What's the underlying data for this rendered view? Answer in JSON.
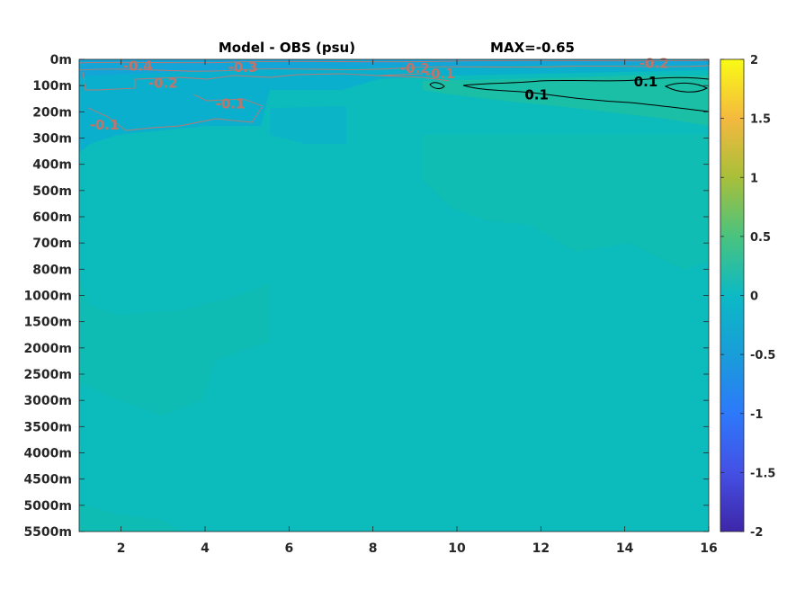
{
  "chart_data": {
    "type": "heatmap",
    "title": "Model - OBS (psu)",
    "subtitle": "MAX=-0.65",
    "xlabel": "",
    "ylabel": "",
    "x_range": [
      1,
      16
    ],
    "x_ticks": [
      2,
      4,
      6,
      8,
      10,
      12,
      14,
      16
    ],
    "y_tick_labels": [
      "0m",
      "100m",
      "200m",
      "300m",
      "400m",
      "500m",
      "600m",
      "700m",
      "800m",
      "1000m",
      "1500m",
      "2000m",
      "2500m",
      "3000m",
      "3500m",
      "4000m",
      "4500m",
      "5000m",
      "5500m"
    ],
    "colorbar": {
      "range": [
        -2,
        2
      ],
      "ticks": [
        "2",
        "1.5",
        "1",
        "0.5",
        "0",
        "-0.5",
        "-1",
        "-1.5",
        "-2"
      ],
      "colormap": "parula"
    },
    "contour_labels": [
      {
        "text": "-0.4",
        "x": 2.4,
        "depth_index": 0.25,
        "color": "#c0756b"
      },
      {
        "text": "-0.2",
        "x": 3.0,
        "depth_index": 0.9,
        "color": "#c0756b"
      },
      {
        "text": "-0.3",
        "x": 4.9,
        "depth_index": 0.3,
        "color": "#c0756b"
      },
      {
        "text": "-0.1",
        "x": 4.6,
        "depth_index": 1.7,
        "color": "#c0756b"
      },
      {
        "text": "-0.1",
        "x": 1.6,
        "depth_index": 2.5,
        "color": "#c0756b"
      },
      {
        "text": "-0.2",
        "x": 9.0,
        "depth_index": 0.35,
        "color": "#c0756b"
      },
      {
        "text": "-0.1",
        "x": 9.6,
        "depth_index": 0.55,
        "color": "#c0756b"
      },
      {
        "text": "-0.2",
        "x": 14.7,
        "depth_index": 0.15,
        "color": "#c0756b"
      },
      {
        "text": "0.1",
        "x": 11.9,
        "depth_index": 1.35,
        "color": "#000000"
      },
      {
        "text": "0.1",
        "x": 14.5,
        "depth_index": 0.85,
        "color": "#000000"
      }
    ],
    "field_description_levels": {
      "background": 0.0,
      "surface_min": -0.65,
      "positive_max": 0.15
    }
  }
}
